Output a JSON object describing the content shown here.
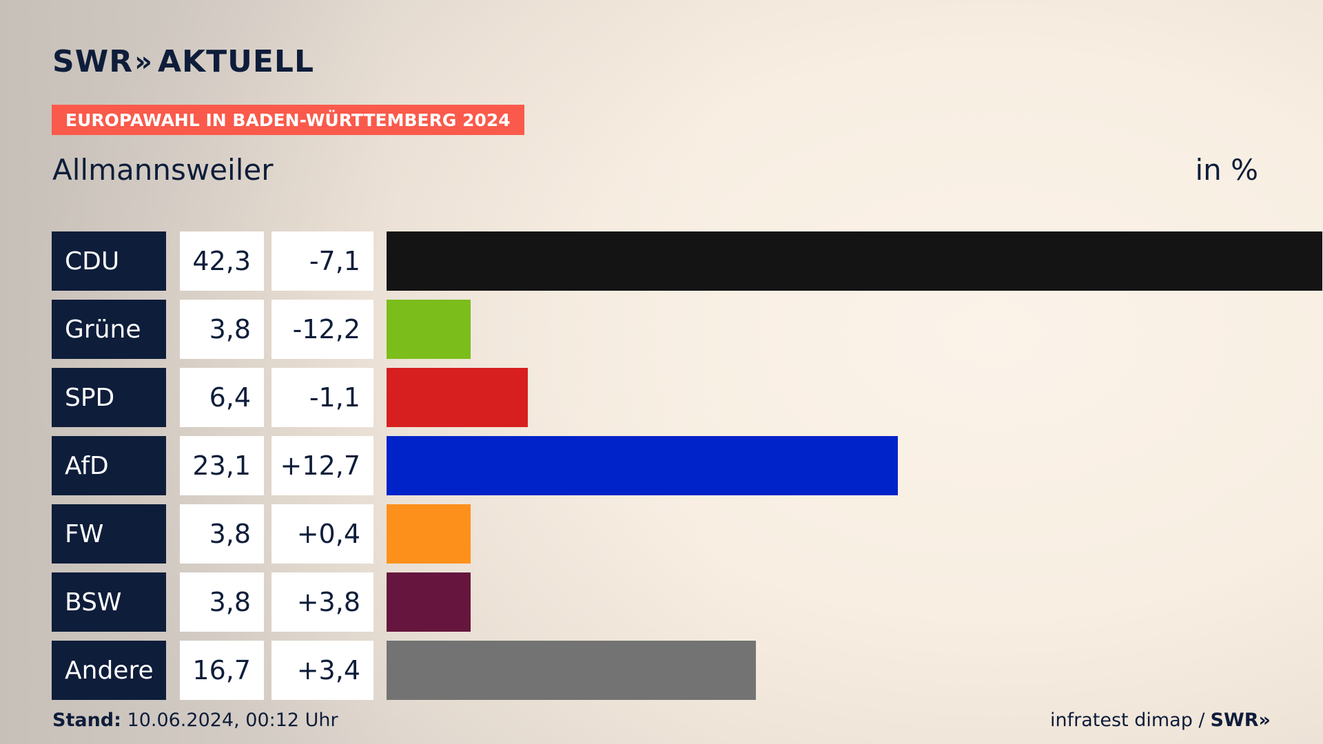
{
  "brand": {
    "logo_left": "SWR",
    "logo_chevrons": "»",
    "logo_right": "AKTUELL"
  },
  "banner": "EUROPAWAHL IN BADEN-WÜRTTEMBERG 2024",
  "place": "Allmannsweiler",
  "unit": "in %",
  "footer": {
    "stand_label": "Stand:",
    "stand_value": "10.06.2024, 00:12 Uhr",
    "source": "infratest dimap /",
    "source_brand": "SWR»"
  },
  "chart_data": {
    "type": "bar",
    "orientation": "horizontal",
    "categories": [
      "CDU",
      "Grüne",
      "SPD",
      "AfD",
      "FW",
      "BSW",
      "Andere"
    ],
    "values": [
      42.3,
      3.8,
      6.4,
      23.1,
      3.8,
      3.8,
      16.7
    ],
    "value_labels": [
      "42,3",
      "3,8",
      "6,4",
      "23,1",
      "3,8",
      "3,8",
      "16,7"
    ],
    "diff_labels": [
      "-7,1",
      "-12,2",
      "-1,1",
      "+12,7",
      "+0,4",
      "+3,8",
      "+3,4"
    ],
    "diffs": [
      -7.1,
      -12.2,
      -1.1,
      12.7,
      0.4,
      3.8,
      3.4
    ],
    "colors": [
      "#141414",
      "#7bbd1b",
      "#d81f1f",
      "#0022c9",
      "#fd901b",
      "#66163e",
      "#737373"
    ],
    "xlim": [
      0,
      42.3
    ],
    "grid": false,
    "legend": "none"
  }
}
